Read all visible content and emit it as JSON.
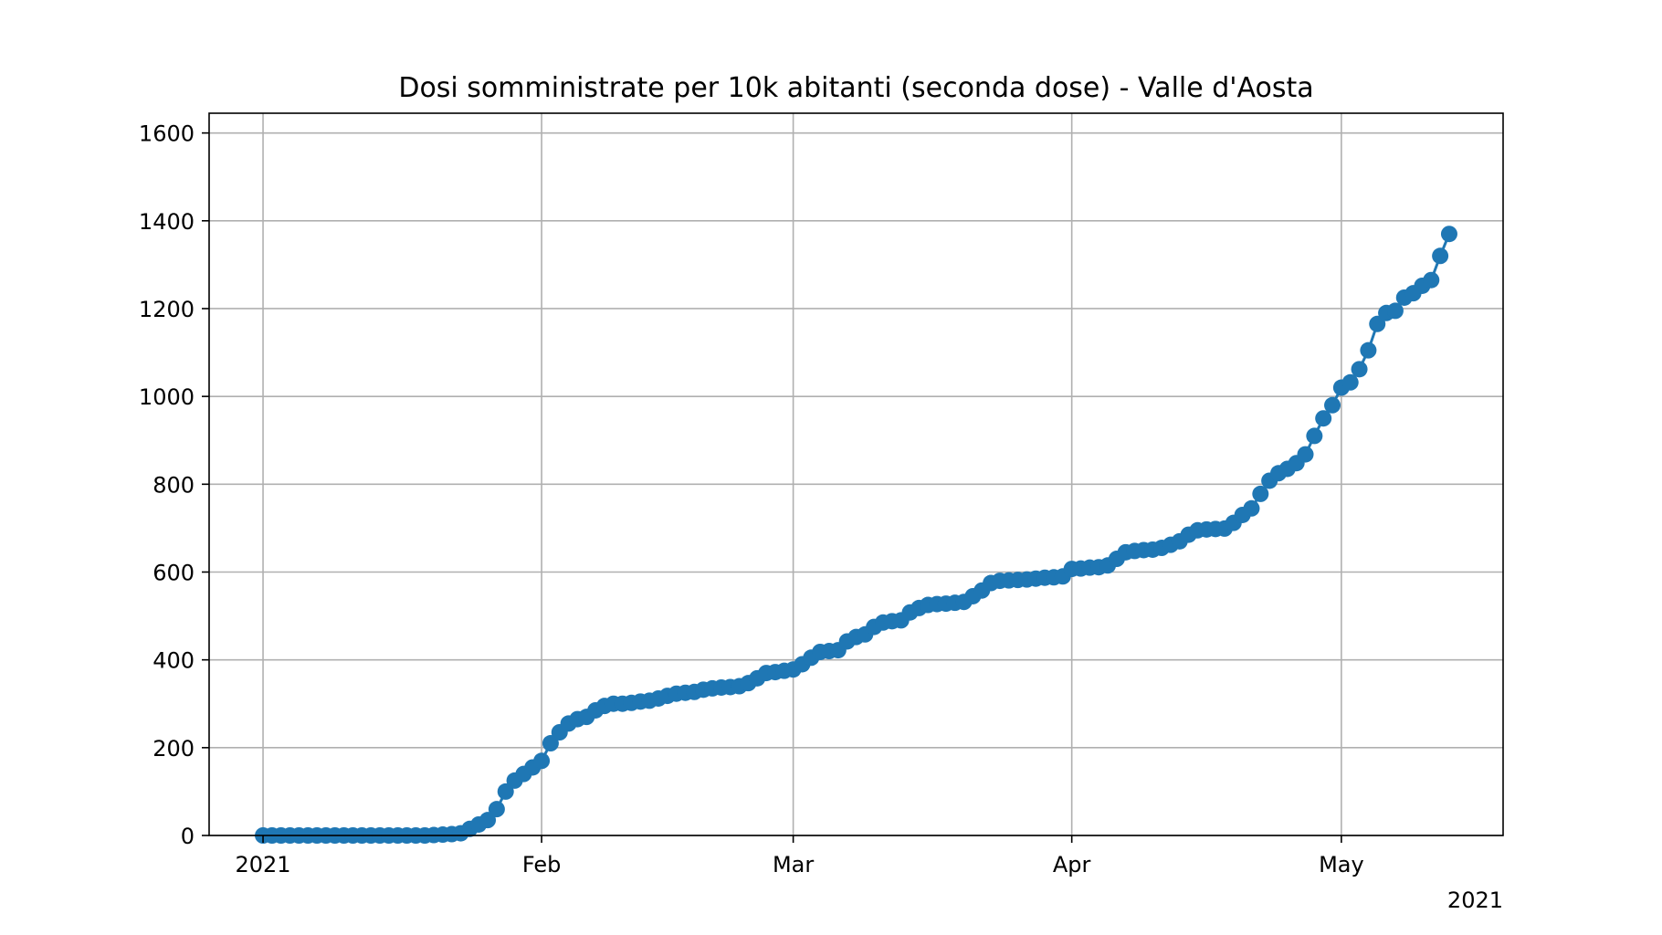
{
  "chart_data": {
    "type": "line",
    "title": "Dosi somministrate per 10k abitanti (seconda dose) - Valle d'Aosta",
    "xlabel": "",
    "ylabel": "",
    "x_tick_labels": [
      "2021",
      "Feb",
      "Mar",
      "Apr",
      "May"
    ],
    "x_offset_label": "2021",
    "y_ticks": [
      0,
      200,
      400,
      600,
      800,
      1000,
      1200,
      1400,
      1600
    ],
    "xlim": [
      "2020-12-26",
      "2021-05-19"
    ],
    "ylim": [
      0,
      1645
    ],
    "grid": true,
    "legend": "none",
    "color": "#1f77b4",
    "marker": "circle",
    "series": [
      {
        "x": [
          "2021-01-01",
          "2021-01-02",
          "2021-01-03",
          "2021-01-04",
          "2021-01-05",
          "2021-01-06",
          "2021-01-07",
          "2021-01-08",
          "2021-01-09",
          "2021-01-10",
          "2021-01-11",
          "2021-01-12",
          "2021-01-13",
          "2021-01-14",
          "2021-01-15",
          "2021-01-16",
          "2021-01-17",
          "2021-01-18",
          "2021-01-19",
          "2021-01-20",
          "2021-01-21",
          "2021-01-22",
          "2021-01-23",
          "2021-01-24",
          "2021-01-25",
          "2021-01-26",
          "2021-01-27",
          "2021-01-28",
          "2021-01-29",
          "2021-01-30",
          "2021-01-31",
          "2021-02-01",
          "2021-02-02",
          "2021-02-03",
          "2021-02-04",
          "2021-02-05",
          "2021-02-06",
          "2021-02-07",
          "2021-02-08",
          "2021-02-09",
          "2021-02-10",
          "2021-02-11",
          "2021-02-12",
          "2021-02-13",
          "2021-02-14",
          "2021-02-15",
          "2021-02-16",
          "2021-02-17",
          "2021-02-18",
          "2021-02-19",
          "2021-02-20",
          "2021-02-21",
          "2021-02-22",
          "2021-02-23",
          "2021-02-24",
          "2021-02-25",
          "2021-02-26",
          "2021-02-27",
          "2021-02-28",
          "2021-03-01",
          "2021-03-02",
          "2021-03-03",
          "2021-03-04",
          "2021-03-05",
          "2021-03-06",
          "2021-03-07",
          "2021-03-08",
          "2021-03-09",
          "2021-03-10",
          "2021-03-11",
          "2021-03-12",
          "2021-03-13",
          "2021-03-14",
          "2021-03-15",
          "2021-03-16",
          "2021-03-17",
          "2021-03-18",
          "2021-03-19",
          "2021-03-20",
          "2021-03-21",
          "2021-03-22",
          "2021-03-23",
          "2021-03-24",
          "2021-03-25",
          "2021-03-26",
          "2021-03-27",
          "2021-03-28",
          "2021-03-29",
          "2021-03-30",
          "2021-03-31",
          "2021-04-01",
          "2021-04-02",
          "2021-04-03",
          "2021-04-04",
          "2021-04-05",
          "2021-04-06",
          "2021-04-07",
          "2021-04-08",
          "2021-04-09",
          "2021-04-10",
          "2021-04-11",
          "2021-04-12",
          "2021-04-13",
          "2021-04-14",
          "2021-04-15",
          "2021-04-16",
          "2021-04-17",
          "2021-04-18",
          "2021-04-19",
          "2021-04-20",
          "2021-04-21",
          "2021-04-22",
          "2021-04-23",
          "2021-04-24",
          "2021-04-25",
          "2021-04-26",
          "2021-04-27",
          "2021-04-28",
          "2021-04-29",
          "2021-04-30",
          "2021-05-01",
          "2021-05-02",
          "2021-05-03",
          "2021-05-04",
          "2021-05-05",
          "2021-05-06",
          "2021-05-07",
          "2021-05-08",
          "2021-05-09",
          "2021-05-10",
          "2021-05-11",
          "2021-05-12",
          "2021-05-13"
        ],
        "values": [
          0,
          0,
          0,
          0,
          0,
          0,
          0,
          0,
          0,
          0,
          0,
          0,
          0,
          0,
          0,
          0,
          0,
          0,
          0,
          1,
          2,
          3,
          5,
          15,
          25,
          35,
          60,
          100,
          125,
          140,
          155,
          170,
          210,
          235,
          255,
          265,
          270,
          285,
          295,
          300,
          300,
          302,
          305,
          307,
          312,
          318,
          323,
          325,
          327,
          332,
          335,
          337,
          338,
          340,
          347,
          358,
          370,
          372,
          375,
          378,
          390,
          405,
          418,
          420,
          422,
          442,
          452,
          458,
          475,
          485,
          488,
          490,
          508,
          518,
          525,
          527,
          528,
          530,
          532,
          545,
          558,
          575,
          580,
          581,
          582,
          583,
          585,
          587,
          588,
          590,
          607,
          608,
          610,
          611,
          615,
          630,
          645,
          648,
          650,
          651,
          655,
          662,
          670,
          685,
          695,
          697,
          698,
          699,
          712,
          730,
          745,
          778,
          808,
          825,
          835,
          848,
          868,
          910,
          950,
          980,
          1020,
          1032,
          1062,
          1105,
          1165,
          1190,
          1195,
          1225,
          1235,
          1252,
          1265,
          1320,
          1370
        ]
      }
    ]
  }
}
